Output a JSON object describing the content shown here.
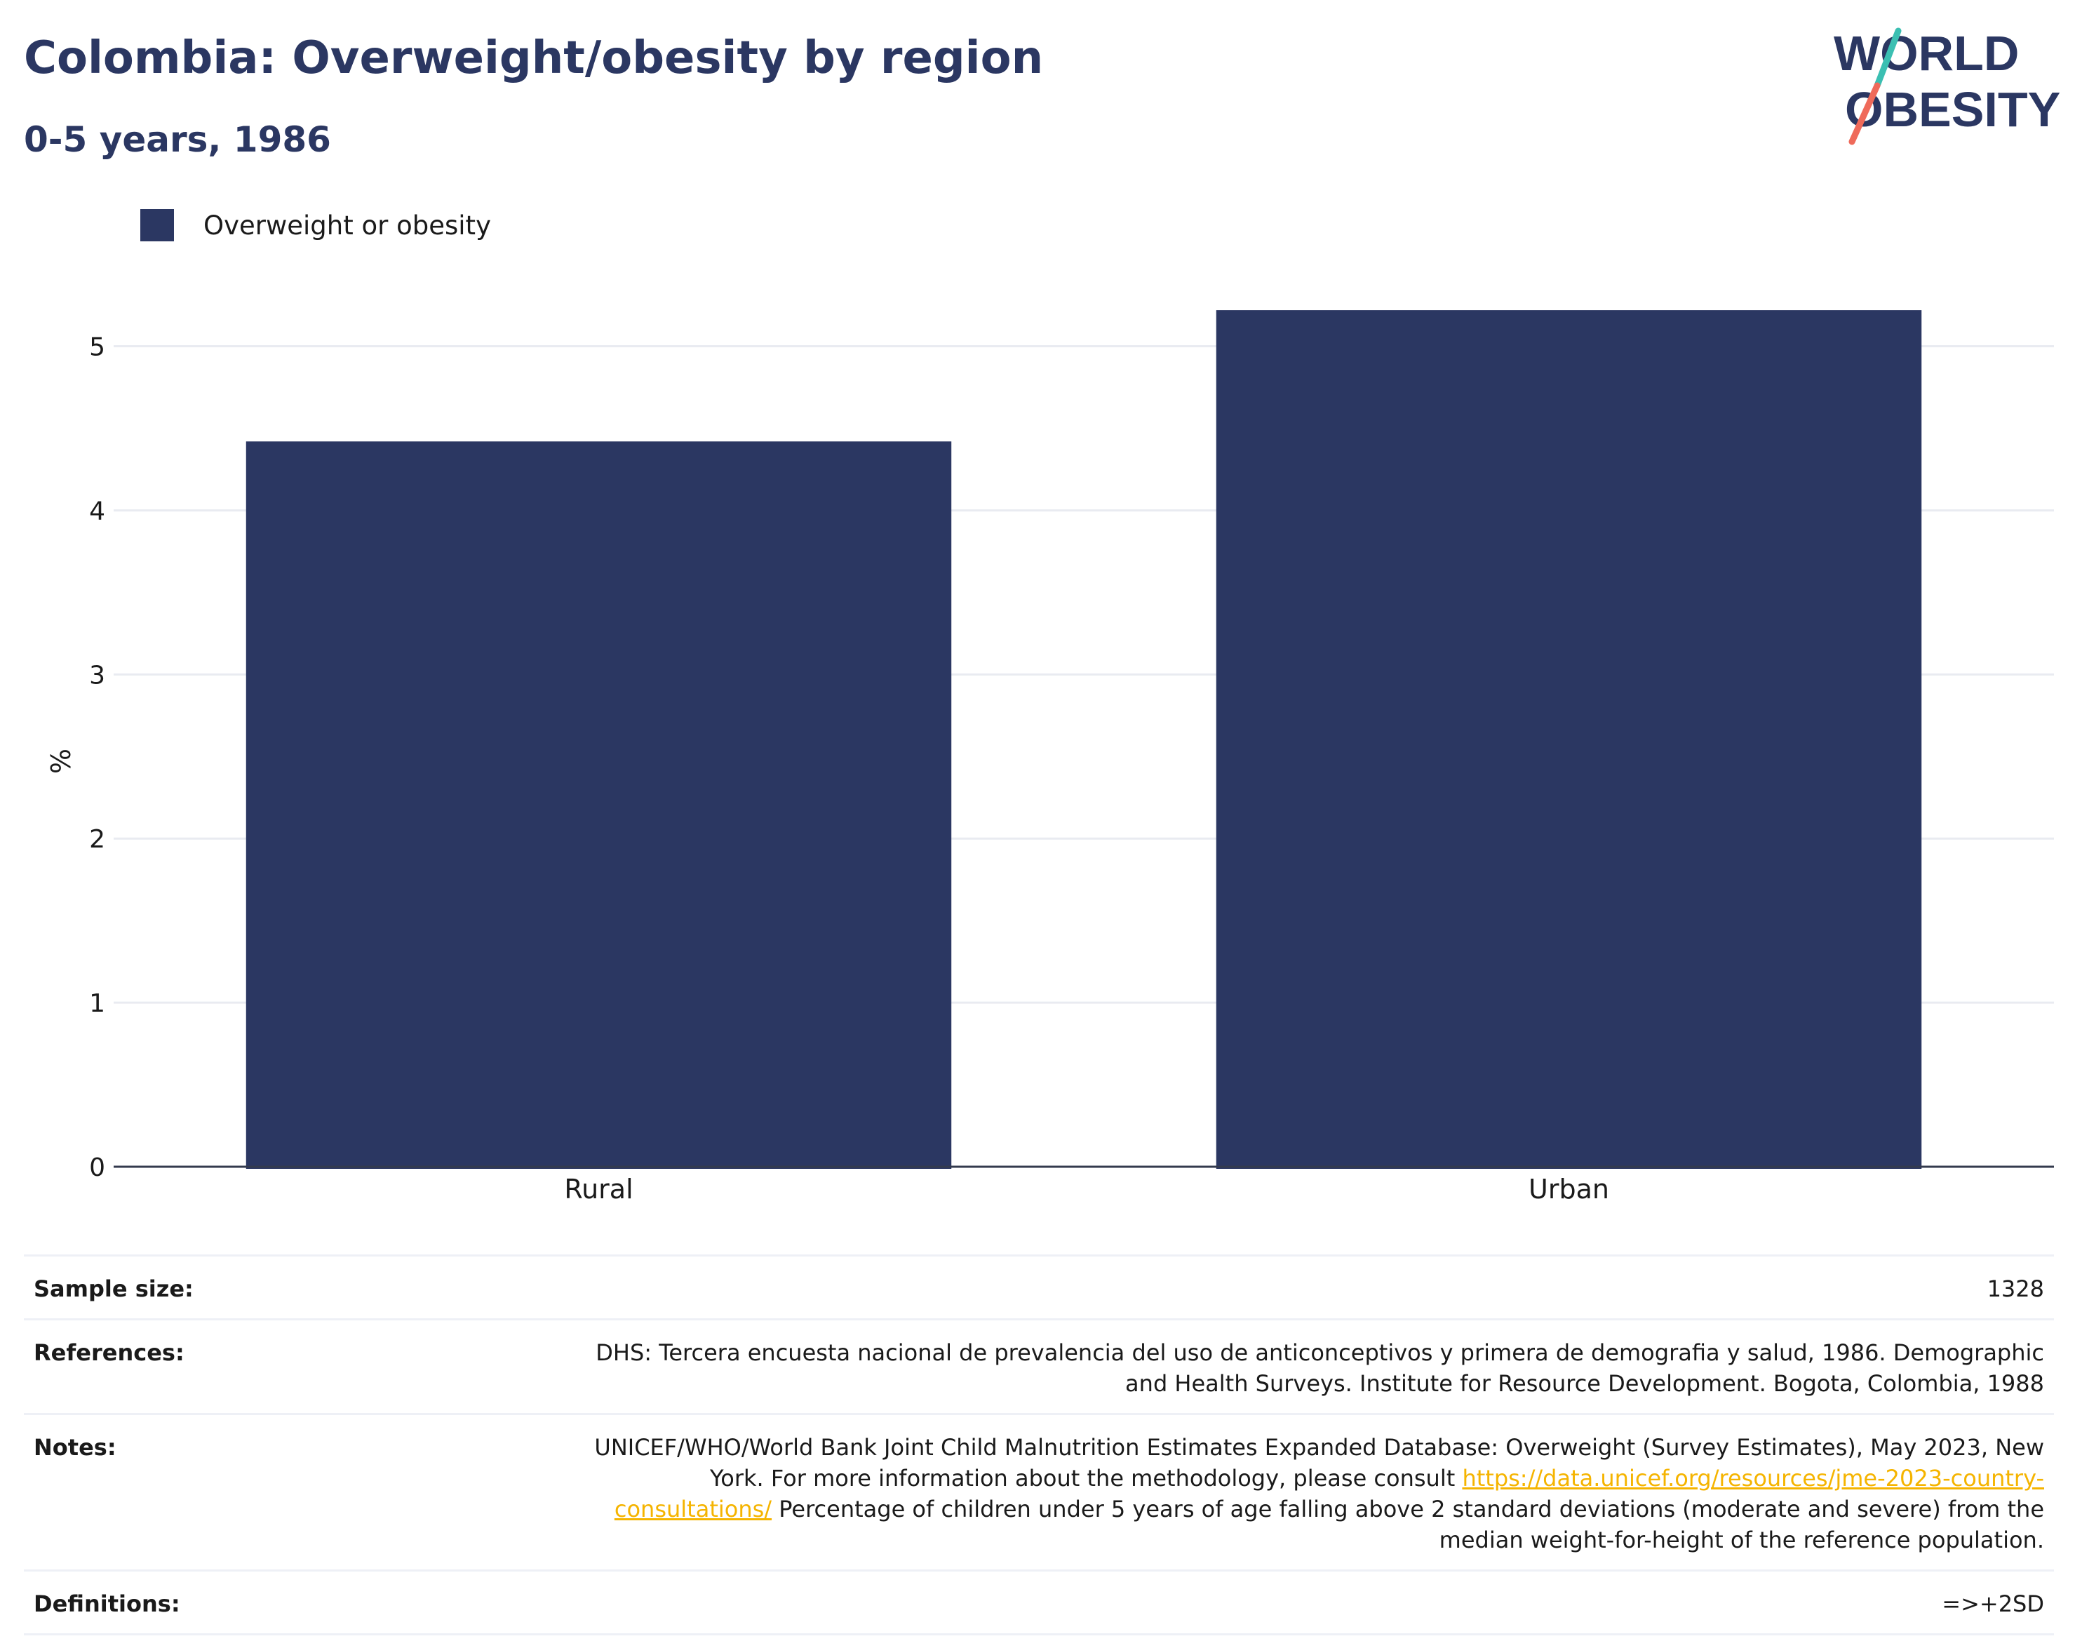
{
  "header": {
    "title": "Colombia: Overweight/obesity by region",
    "subtitle": "0-5 years, 1986"
  },
  "logo": {
    "line1": "WORLD",
    "line2": "OBESITY"
  },
  "colors": {
    "bar": "#2b3762",
    "accent_teal": "#3bbfb2",
    "accent_coral": "#ef6a5a",
    "link": "#f5b400"
  },
  "chart_data": {
    "type": "bar",
    "categories": [
      "Rural",
      "Urban"
    ],
    "series": [
      {
        "name": "Overweight or obesity",
        "values": [
          4.42,
          5.22
        ]
      }
    ],
    "ylabel": "%",
    "yticks": [
      0,
      1,
      2,
      3,
      4,
      5
    ],
    "ylim": [
      0,
      5.4
    ],
    "grid": true,
    "legend": "top-left"
  },
  "meta": {
    "sample_size_label": "Sample size:",
    "sample_size_value": "1328",
    "references_label": "References:",
    "references_value": "DHS: Tercera encuesta nacional de prevalencia del uso de anticonceptivos y primera de demografia y salud, 1986. Demographic and Health Surveys. Institute for Resource Development. Bogota, Colombia, 1988",
    "notes_label": "Notes:",
    "notes_text_1": "UNICEF/WHO/World Bank Joint Child Malnutrition Estimates Expanded Database: Overweight (Survey Estimates), May 2023, New York. For more information about the methodology, please consult ",
    "notes_link": "https://data.unicef.org/resources/jme-2023-country-consultations/",
    "notes_text_2": " Percentage of children under 5 years of age falling above 2 standard deviations (moderate and severe) from the median weight-for-height of the reference population.",
    "definitions_label": "Definitions:",
    "definitions_value": "=>+2SD"
  }
}
